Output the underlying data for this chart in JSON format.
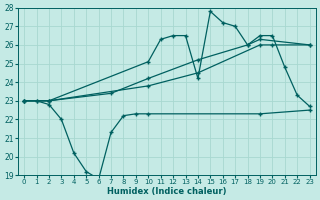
{
  "xlabel": "Humidex (Indice chaleur)",
  "bg_color": "#c5eae5",
  "grid_color": "#a8d8d0",
  "line_color": "#006060",
  "xlim": [
    -0.5,
    23.5
  ],
  "ylim": [
    19,
    28
  ],
  "xtick_vals": [
    0,
    1,
    2,
    3,
    4,
    5,
    6,
    7,
    8,
    9,
    10,
    11,
    12,
    13,
    14,
    15,
    16,
    17,
    18,
    19,
    20,
    21,
    22,
    23
  ],
  "ytick_vals": [
    19,
    20,
    21,
    22,
    23,
    24,
    25,
    26,
    27,
    28
  ],
  "line1_x": [
    0,
    1,
    2,
    3,
    4,
    5,
    6,
    7,
    8,
    9,
    10,
    19,
    23
  ],
  "line1_y": [
    23.0,
    23.0,
    22.8,
    22.0,
    20.2,
    19.2,
    18.8,
    21.3,
    22.2,
    22.3,
    22.3,
    22.3,
    22.5
  ],
  "line2_x": [
    0,
    2,
    10,
    14,
    19,
    20,
    23
  ],
  "line2_y": [
    23.0,
    23.0,
    23.8,
    24.5,
    26.0,
    26.0,
    26.0
  ],
  "line3_x": [
    0,
    1,
    2,
    10,
    11,
    12,
    13,
    14,
    15,
    16,
    17,
    18,
    19,
    20,
    21,
    22,
    23
  ],
  "line3_y": [
    23.0,
    23.0,
    23.0,
    25.1,
    26.3,
    26.5,
    26.5,
    24.2,
    27.8,
    27.2,
    27.0,
    26.0,
    26.5,
    26.5,
    24.8,
    23.3,
    22.7
  ],
  "line4_x": [
    0,
    2,
    7,
    10,
    14,
    18,
    19,
    23
  ],
  "line4_y": [
    23.0,
    23.0,
    23.4,
    24.2,
    25.2,
    26.0,
    26.3,
    26.0
  ]
}
